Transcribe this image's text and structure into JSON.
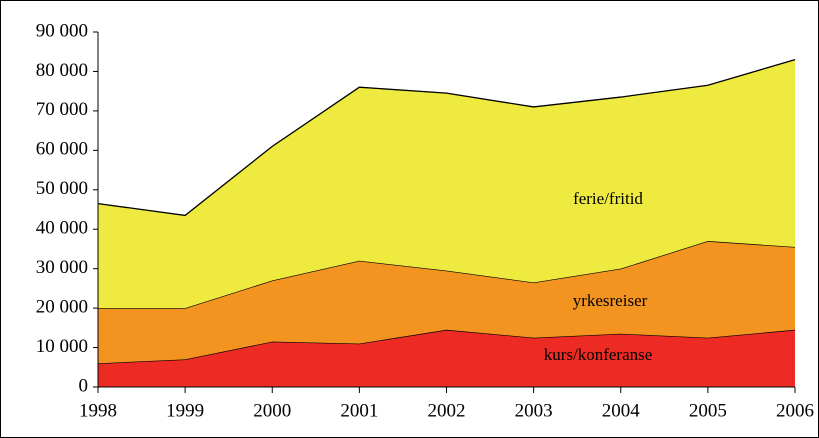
{
  "chart_data": {
    "type": "stacked_area",
    "x": [
      1998,
      1999,
      2000,
      2001,
      2002,
      2003,
      2004,
      2005,
      2006
    ],
    "xlim": [
      1998,
      2006
    ],
    "series": [
      {
        "name": "kurs/konferanse",
        "color": "#ee2a24",
        "values": [
          6000,
          7000,
          11500,
          11000,
          14500,
          12500,
          13500,
          12500,
          14500
        ]
      },
      {
        "name": "yrkesreiser",
        "color": "#f39420",
        "values": [
          14000,
          13000,
          15500,
          21000,
          15000,
          14000,
          16500,
          24500,
          21000
        ]
      },
      {
        "name": "ferie/fritid",
        "color": "#eeea40",
        "values": [
          26500,
          23500,
          34000,
          44000,
          45000,
          44500,
          43500,
          39500,
          47500
        ]
      }
    ],
    "ylim": [
      0,
      90000
    ],
    "yticks": [
      0,
      {
        "value": 10000,
        "label": "10 000"
      },
      {
        "value": 20000,
        "label": "20 000"
      },
      {
        "value": 30000,
        "label": "30 000"
      },
      {
        "value": 40000,
        "label": "40 000"
      },
      {
        "value": 50000,
        "label": "50 000"
      },
      {
        "value": 60000,
        "label": "60 000"
      },
      {
        "value": 70000,
        "label": "70 000"
      },
      {
        "value": 80000,
        "label": "80 000"
      },
      {
        "value": 90000,
        "label": "90 000"
      }
    ]
  }
}
